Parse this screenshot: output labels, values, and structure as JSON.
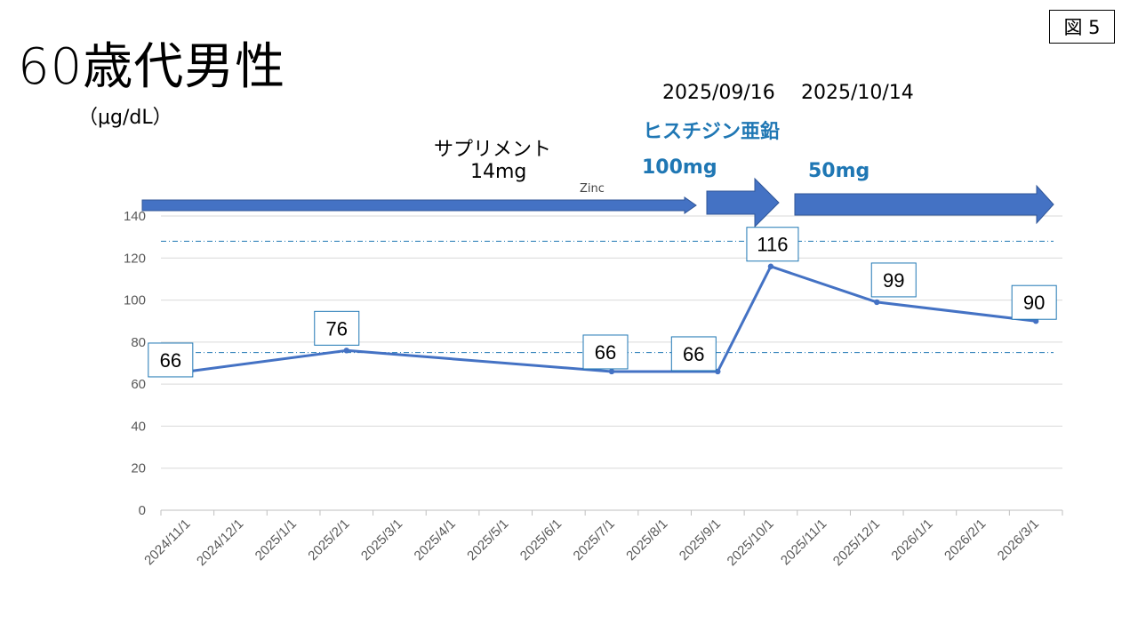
{
  "slide": {
    "title": "60歳代男性",
    "unit": "（μg/dL）",
    "figure_label": "図 5",
    "date_start_histidine": "2025/09/16",
    "date_change_dose": "2025/10/14",
    "drug_name": "ヒスチジン亜鉛",
    "dose_100": "100mg",
    "dose_50": "50mg",
    "supplement_line1": "サプリメント",
    "supplement_line2": "14mg",
    "zinc_label": "Zinc",
    "colors": {
      "series": "#4472C4",
      "accent_text": "#1f77b4",
      "label_border": "#1f77b4",
      "reference_line": "#1f77b4"
    }
  },
  "chart_data": {
    "type": "line",
    "title": "",
    "xlabel": "",
    "ylabel": "（μg/dL）",
    "ylim": [
      0,
      140
    ],
    "yticks": [
      0,
      20,
      40,
      60,
      80,
      100,
      120,
      140
    ],
    "categories": [
      "2024/11/1",
      "2024/12/1",
      "2025/1/1",
      "2025/2/1",
      "2025/3/1",
      "2025/4/1",
      "2025/5/1",
      "2025/6/1",
      "2025/7/1",
      "2025/8/1",
      "2025/9/1",
      "2025/10/1",
      "2025/11/1",
      "2025/12/1",
      "2026/1/1",
      "2026/2/1",
      "2026/3/1"
    ],
    "series": [
      {
        "name": "Zinc",
        "points": [
          {
            "x": 0.5,
            "y": 66,
            "label": "66"
          },
          {
            "x": 3.5,
            "y": 76,
            "label": "76"
          },
          {
            "x": 8.5,
            "y": 66,
            "label": "66"
          },
          {
            "x": 10.5,
            "y": 66,
            "label": "66"
          },
          {
            "x": 11.5,
            "y": 116,
            "label": "116"
          },
          {
            "x": 13.5,
            "y": 99,
            "label": "99"
          },
          {
            "x": 16.5,
            "y": 90,
            "label": "90"
          }
        ]
      }
    ],
    "reference_lines": [
      128,
      75
    ],
    "grid": true
  }
}
